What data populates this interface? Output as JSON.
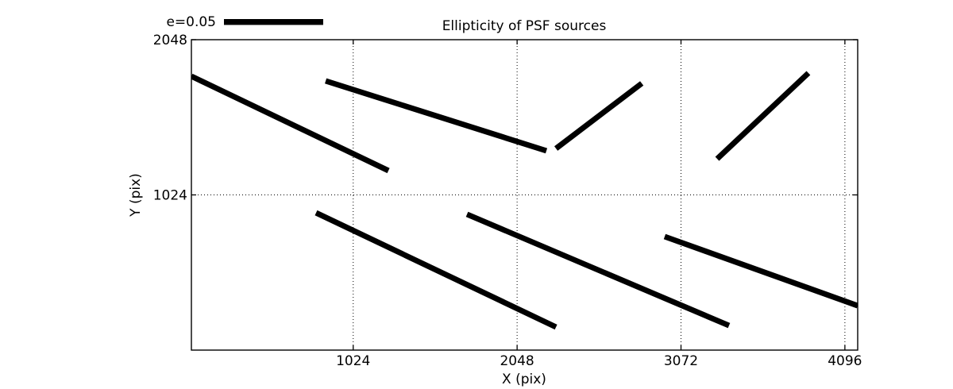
{
  "figure": {
    "background_color": "#ffffff",
    "line_color": "#000000"
  },
  "chart_data": {
    "type": "line",
    "subtype": "ellipticity-whisker-plot",
    "title": "Ellipticity of PSF sources",
    "xlabel": "X (pix)",
    "ylabel": "Y (pix)",
    "xlim": [
      13,
      4176
    ],
    "ylim": [
      0,
      2048
    ],
    "xticks": [
      1024,
      2048,
      3072,
      4096
    ],
    "yticks": [
      1024,
      2048
    ],
    "grid": "dotted",
    "grid_on": true,
    "legend": {
      "label": "e=0.05",
      "position": "top-left-outside",
      "bar_data_length": 620
    },
    "segments": [
      {
        "x1": 13,
        "y1": 1807,
        "x2": 1244,
        "y2": 1184
      },
      {
        "x1": 852,
        "y1": 1776,
        "x2": 2231,
        "y2": 1315
      },
      {
        "x1": 2291,
        "y1": 1330,
        "x2": 2827,
        "y2": 1760
      },
      {
        "x1": 3298,
        "y1": 1262,
        "x2": 3868,
        "y2": 1828
      },
      {
        "x1": 792,
        "y1": 906,
        "x2": 2291,
        "y2": 152
      },
      {
        "x1": 1735,
        "y1": 896,
        "x2": 3372,
        "y2": 162
      },
      {
        "x1": 2970,
        "y1": 749,
        "x2": 4176,
        "y2": 293
      }
    ]
  }
}
